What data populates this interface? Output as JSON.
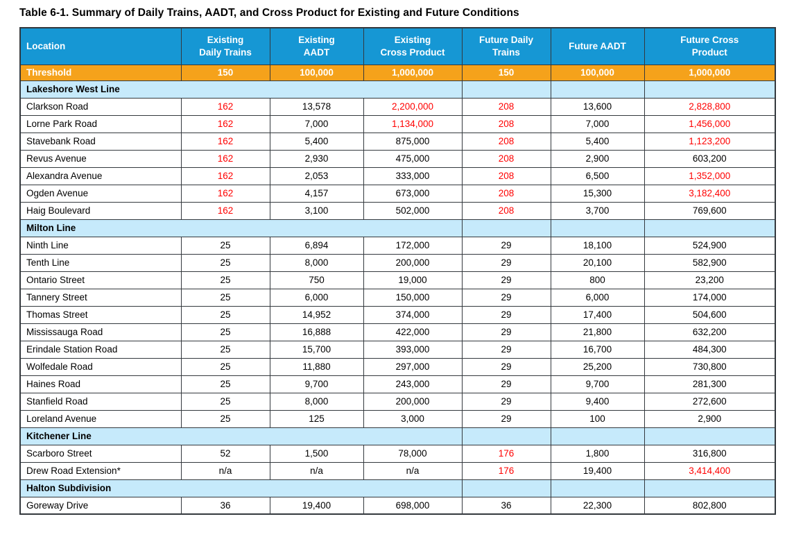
{
  "title": "Table 6-1. Summary of Daily Trains, AADT, and Cross Product for Existing and Future Conditions",
  "colors": {
    "header_bg": "#1697D4",
    "threshold_bg": "#F5A21B",
    "section_bg": "#C6EAFB",
    "alert": "#FF0000",
    "border": "#33383D",
    "text": "#000000"
  },
  "columns": [
    "Location",
    "Existing\nDaily Trains",
    "Existing\nAADT",
    "Existing\nCross Product",
    "Future Daily\nTrains",
    "Future AADT",
    "Future Cross\nProduct"
  ],
  "threshold": {
    "label": "Threshold",
    "values": [
      "150",
      "100,000",
      "1,000,000",
      "150",
      "100,000",
      "1,000,000"
    ]
  },
  "sections": [
    {
      "name": "Lakeshore West Line",
      "rows": [
        {
          "location": "Clarkson Road",
          "values": [
            "162",
            "13,578",
            "2,200,000",
            "208",
            "13,600",
            "2,828,800"
          ],
          "red": [
            true,
            false,
            true,
            true,
            false,
            true
          ]
        },
        {
          "location": "Lorne Park Road",
          "values": [
            "162",
            "7,000",
            "1,134,000",
            "208",
            "7,000",
            "1,456,000"
          ],
          "red": [
            true,
            false,
            true,
            true,
            false,
            true
          ]
        },
        {
          "location": "Stavebank Road",
          "values": [
            "162",
            "5,400",
            "875,000",
            "208",
            "5,400",
            "1,123,200"
          ],
          "red": [
            true,
            false,
            false,
            true,
            false,
            true
          ]
        },
        {
          "location": "Revus Avenue",
          "values": [
            "162",
            "2,930",
            "475,000",
            "208",
            "2,900",
            "603,200"
          ],
          "red": [
            true,
            false,
            false,
            true,
            false,
            false
          ]
        },
        {
          "location": "Alexandra Avenue",
          "values": [
            "162",
            "2,053",
            "333,000",
            "208",
            "6,500",
            "1,352,000"
          ],
          "red": [
            true,
            false,
            false,
            true,
            false,
            true
          ]
        },
        {
          "location": "Ogden Avenue",
          "values": [
            "162",
            "4,157",
            "673,000",
            "208",
            "15,300",
            "3,182,400"
          ],
          "red": [
            true,
            false,
            false,
            true,
            false,
            true
          ]
        },
        {
          "location": "Haig Boulevard",
          "values": [
            "162",
            "3,100",
            "502,000",
            "208",
            "3,700",
            "769,600"
          ],
          "red": [
            true,
            false,
            false,
            true,
            false,
            false
          ]
        }
      ]
    },
    {
      "name": "Milton Line",
      "rows": [
        {
          "location": "Ninth Line",
          "values": [
            "25",
            "6,894",
            "172,000",
            "29",
            "18,100",
            "524,900"
          ],
          "red": [
            false,
            false,
            false,
            false,
            false,
            false
          ]
        },
        {
          "location": "Tenth Line",
          "values": [
            "25",
            "8,000",
            "200,000",
            "29",
            "20,100",
            "582,900"
          ],
          "red": [
            false,
            false,
            false,
            false,
            false,
            false
          ]
        },
        {
          "location": "Ontario Street",
          "values": [
            "25",
            "750",
            "19,000",
            "29",
            "800",
            "23,200"
          ],
          "red": [
            false,
            false,
            false,
            false,
            false,
            false
          ]
        },
        {
          "location": "Tannery Street",
          "values": [
            "25",
            "6,000",
            "150,000",
            "29",
            "6,000",
            "174,000"
          ],
          "red": [
            false,
            false,
            false,
            false,
            false,
            false
          ]
        },
        {
          "location": "Thomas Street",
          "values": [
            "25",
            "14,952",
            "374,000",
            "29",
            "17,400",
            "504,600"
          ],
          "red": [
            false,
            false,
            false,
            false,
            false,
            false
          ]
        },
        {
          "location": "Mississauga Road",
          "values": [
            "25",
            "16,888",
            "422,000",
            "29",
            "21,800",
            "632,200"
          ],
          "red": [
            false,
            false,
            false,
            false,
            false,
            false
          ]
        },
        {
          "location": "Erindale Station Road",
          "values": [
            "25",
            "15,700",
            "393,000",
            "29",
            "16,700",
            "484,300"
          ],
          "red": [
            false,
            false,
            false,
            false,
            false,
            false
          ]
        },
        {
          "location": "Wolfedale Road",
          "values": [
            "25",
            "11,880",
            "297,000",
            "29",
            "25,200",
            "730,800"
          ],
          "red": [
            false,
            false,
            false,
            false,
            false,
            false
          ]
        },
        {
          "location": "Haines Road",
          "values": [
            "25",
            "9,700",
            "243,000",
            "29",
            "9,700",
            "281,300"
          ],
          "red": [
            false,
            false,
            false,
            false,
            false,
            false
          ]
        },
        {
          "location": "Stanfield Road",
          "values": [
            "25",
            "8,000",
            "200,000",
            "29",
            "9,400",
            "272,600"
          ],
          "red": [
            false,
            false,
            false,
            false,
            false,
            false
          ]
        },
        {
          "location": "Loreland Avenue",
          "values": [
            "25",
            "125",
            "3,000",
            "29",
            "100",
            "2,900"
          ],
          "red": [
            false,
            false,
            false,
            false,
            false,
            false
          ]
        }
      ]
    },
    {
      "name": "Kitchener Line",
      "rows": [
        {
          "location": "Scarboro Street",
          "values": [
            "52",
            "1,500",
            "78,000",
            "176",
            "1,800",
            "316,800"
          ],
          "red": [
            false,
            false,
            false,
            true,
            false,
            false
          ]
        },
        {
          "location": "Drew Road Extension*",
          "values": [
            "n/a",
            "n/a",
            "n/a",
            "176",
            "19,400",
            "3,414,400"
          ],
          "red": [
            false,
            false,
            false,
            true,
            false,
            true
          ]
        }
      ]
    },
    {
      "name": "Halton Subdivision",
      "rows": [
        {
          "location": "Goreway Drive",
          "values": [
            "36",
            "19,400",
            "698,000",
            "36",
            "22,300",
            "802,800"
          ],
          "red": [
            false,
            false,
            false,
            false,
            false,
            false
          ]
        }
      ]
    }
  ]
}
